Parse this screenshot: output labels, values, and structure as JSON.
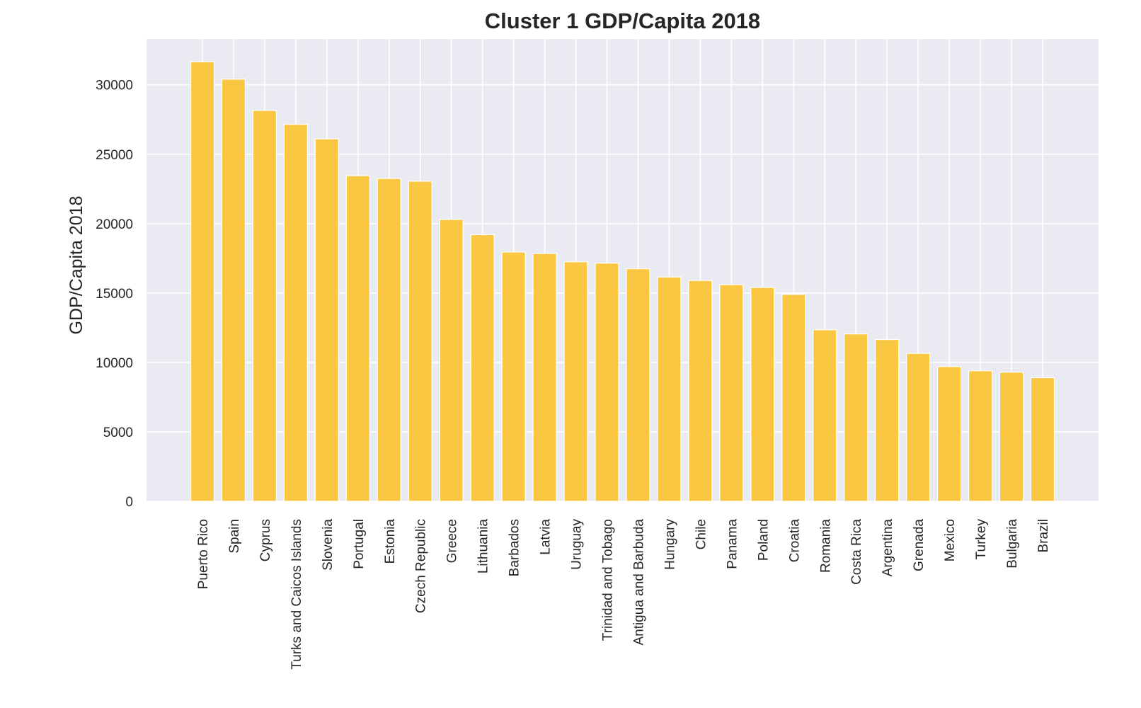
{
  "chart_data": {
    "type": "bar",
    "title": "Cluster 1 GDP/Capita 2018",
    "xlabel": "",
    "ylabel": "GDP/Capita 2018",
    "ylim": [
      0,
      33300
    ],
    "yticks": [
      0,
      5000,
      10000,
      15000,
      20000,
      25000,
      30000
    ],
    "ytick_labels": [
      "0",
      "5000",
      "10000",
      "15000",
      "20000",
      "25000",
      "30000"
    ],
    "grid": true,
    "categories": [
      "Puerto Rico",
      "Spain",
      "Cyprus",
      "Turks and Caicos Islands",
      "Slovenia",
      "Portugal",
      "Estonia",
      "Czech Republic",
      "Greece",
      "Lithuania",
      "Barbados",
      "Latvia",
      "Uruguay",
      "Trinidad and Tobago",
      "Antigua and Barbuda",
      "Hungary",
      "Chile",
      "Panama",
      "Poland",
      "Croatia",
      "Romania",
      "Costa Rica",
      "Argentina",
      "Grenada",
      "Mexico",
      "Turkey",
      "Bulgaria",
      "Brazil"
    ],
    "values": [
      31650,
      30400,
      28150,
      27150,
      26100,
      23450,
      23250,
      23050,
      20300,
      19200,
      17950,
      17850,
      17250,
      17150,
      16750,
      16150,
      15900,
      15600,
      15400,
      14900,
      12350,
      12050,
      11650,
      10650,
      9700,
      9400,
      9300,
      8900
    ],
    "colors": {
      "bar": "#f9c742",
      "plot_bg": "#eaeaf2",
      "grid": "#ffffff",
      "text": "#262626"
    }
  }
}
